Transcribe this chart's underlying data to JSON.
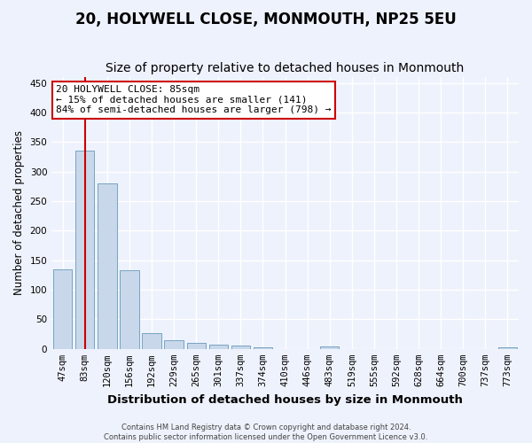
{
  "title": "20, HOLYWELL CLOSE, MONMOUTH, NP25 5EU",
  "subtitle": "Size of property relative to detached houses in Monmouth",
  "xlabel": "Distribution of detached houses by size in Monmouth",
  "ylabel": "Number of detached properties",
  "categories": [
    "47sqm",
    "83sqm",
    "120sqm",
    "156sqm",
    "192sqm",
    "229sqm",
    "265sqm",
    "301sqm",
    "337sqm",
    "374sqm",
    "410sqm",
    "446sqm",
    "483sqm",
    "519sqm",
    "555sqm",
    "592sqm",
    "628sqm",
    "664sqm",
    "700sqm",
    "737sqm",
    "773sqm"
  ],
  "values": [
    135,
    335,
    280,
    133,
    27,
    15,
    10,
    7,
    5,
    3,
    0,
    0,
    4,
    0,
    0,
    0,
    0,
    0,
    0,
    0,
    3
  ],
  "bar_color": "#c8d8ea",
  "bar_edge_color": "#6699bb",
  "vline_x": 1,
  "vline_color": "#cc0000",
  "ylim": [
    0,
    460
  ],
  "yticks": [
    0,
    50,
    100,
    150,
    200,
    250,
    300,
    350,
    400,
    450
  ],
  "annotation_text": "20 HOLYWELL CLOSE: 85sqm\n← 15% of detached houses are smaller (141)\n84% of semi-detached houses are larger (798) →",
  "annotation_box_facecolor": "#ffffff",
  "annotation_box_edgecolor": "#cc0000",
  "footer_line1": "Contains HM Land Registry data © Crown copyright and database right 2024.",
  "footer_line2": "Contains public sector information licensed under the Open Government Licence v3.0.",
  "background_color": "#eef2fc",
  "grid_color": "#ffffff",
  "title_fontsize": 12,
  "subtitle_fontsize": 10,
  "tick_fontsize": 7.5,
  "ylabel_fontsize": 8.5,
  "xlabel_fontsize": 9.5,
  "annotation_fontsize": 8,
  "footer_fontsize": 6
}
